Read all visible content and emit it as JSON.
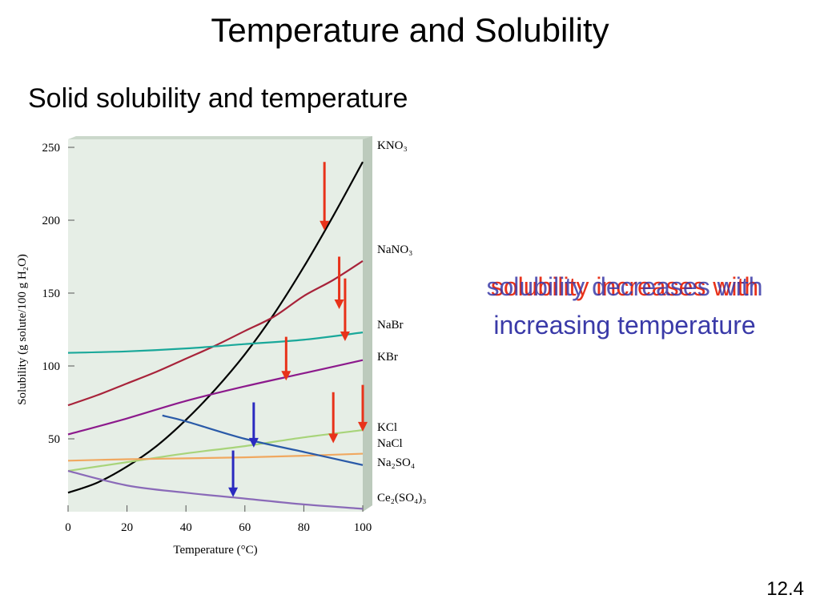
{
  "slide": {
    "title": "Temperature and Solubility",
    "subtitle": "Solid solubility and temperature",
    "note_increase": "solubility increases with",
    "note_decrease": "solubility decreases with",
    "note_line2": "increasing temperature",
    "slide_number": "12.4"
  },
  "colors": {
    "increase_arrow": "#e8321a",
    "decrease_arrow": "#2a2ac0",
    "plot_background": "#e6eee6"
  },
  "chart_data": {
    "type": "line",
    "xlabel": "Temperature (°C)",
    "ylabel": "Solubility (g solute/100 g H₂O)",
    "xlim": [
      0,
      100
    ],
    "ylim": [
      0,
      250
    ],
    "xticks": [
      0,
      20,
      40,
      60,
      80,
      100
    ],
    "yticks": [
      50,
      100,
      150,
      200,
      250
    ],
    "grid": false,
    "legend": "right-end labels",
    "series": [
      {
        "name": "KNO₃",
        "color": "#000000",
        "x": [
          0,
          10,
          20,
          30,
          40,
          50,
          60,
          70,
          80,
          90,
          100
        ],
        "y": [
          13,
          20,
          31,
          45,
          63,
          84,
          108,
          136,
          168,
          203,
          240
        ]
      },
      {
        "name": "NaNO₃",
        "color": "#a8233a",
        "x": [
          0,
          10,
          20,
          30,
          40,
          50,
          60,
          70,
          80,
          90,
          100
        ],
        "y": [
          73,
          80,
          88,
          96,
          105,
          114,
          124,
          134,
          148,
          159,
          172
        ]
      },
      {
        "name": "NaBr",
        "color": "#1aa89a",
        "x": [
          0,
          20,
          40,
          60,
          80,
          100
        ],
        "y": [
          109,
          110,
          112,
          115,
          118,
          123
        ]
      },
      {
        "name": "KBr",
        "color": "#8c1a8c",
        "x": [
          0,
          20,
          40,
          60,
          80,
          100
        ],
        "y": [
          53,
          64,
          76,
          86,
          95,
          104
        ]
      },
      {
        "name": "KCl",
        "color": "#a8d47a",
        "x": [
          0,
          20,
          40,
          60,
          80,
          100
        ],
        "y": [
          28,
          34,
          40,
          45,
          51,
          56
        ]
      },
      {
        "name": "NaCl",
        "color": "#f0a860",
        "x": [
          0,
          20,
          40,
          60,
          80,
          100
        ],
        "y": [
          35,
          36,
          36.6,
          37.3,
          38.4,
          39.8
        ]
      },
      {
        "name": "Na₂SO₄",
        "color": "#2a5aa8",
        "x": [
          32,
          40,
          60,
          80,
          100
        ],
        "y": [
          66,
          62,
          50,
          41,
          32
        ]
      },
      {
        "name": "Ce₂(SO₄)₃",
        "color": "#8a6ab8",
        "x": [
          0,
          20,
          40,
          60,
          80,
          100
        ],
        "y": [
          28,
          18,
          13,
          9,
          5,
          2
        ]
      }
    ],
    "annotations": [
      {
        "type": "arrow",
        "direction": "down",
        "color": "#e8321a",
        "x": 87,
        "y_from": 240,
        "y_to": 193
      },
      {
        "type": "arrow",
        "direction": "down",
        "color": "#e8321a",
        "x": 92,
        "y_from": 175,
        "y_to": 139
      },
      {
        "type": "arrow",
        "direction": "down",
        "color": "#e8321a",
        "x": 94,
        "y_from": 160,
        "y_to": 117
      },
      {
        "type": "arrow",
        "direction": "down",
        "color": "#e8321a",
        "x": 74,
        "y_from": 120,
        "y_to": 90
      },
      {
        "type": "arrow",
        "direction": "down",
        "color": "#e8321a",
        "x": 90,
        "y_from": 82,
        "y_to": 47
      },
      {
        "type": "arrow",
        "direction": "down",
        "color": "#e8321a",
        "x": 100,
        "y_from": 87,
        "y_to": 55
      },
      {
        "type": "arrow",
        "direction": "down",
        "color": "#2a2ac0",
        "x": 63,
        "y_from": 75,
        "y_to": 44
      },
      {
        "type": "arrow",
        "direction": "down",
        "color": "#2a2ac0",
        "x": 56,
        "y_from": 42,
        "y_to": 10
      }
    ]
  }
}
